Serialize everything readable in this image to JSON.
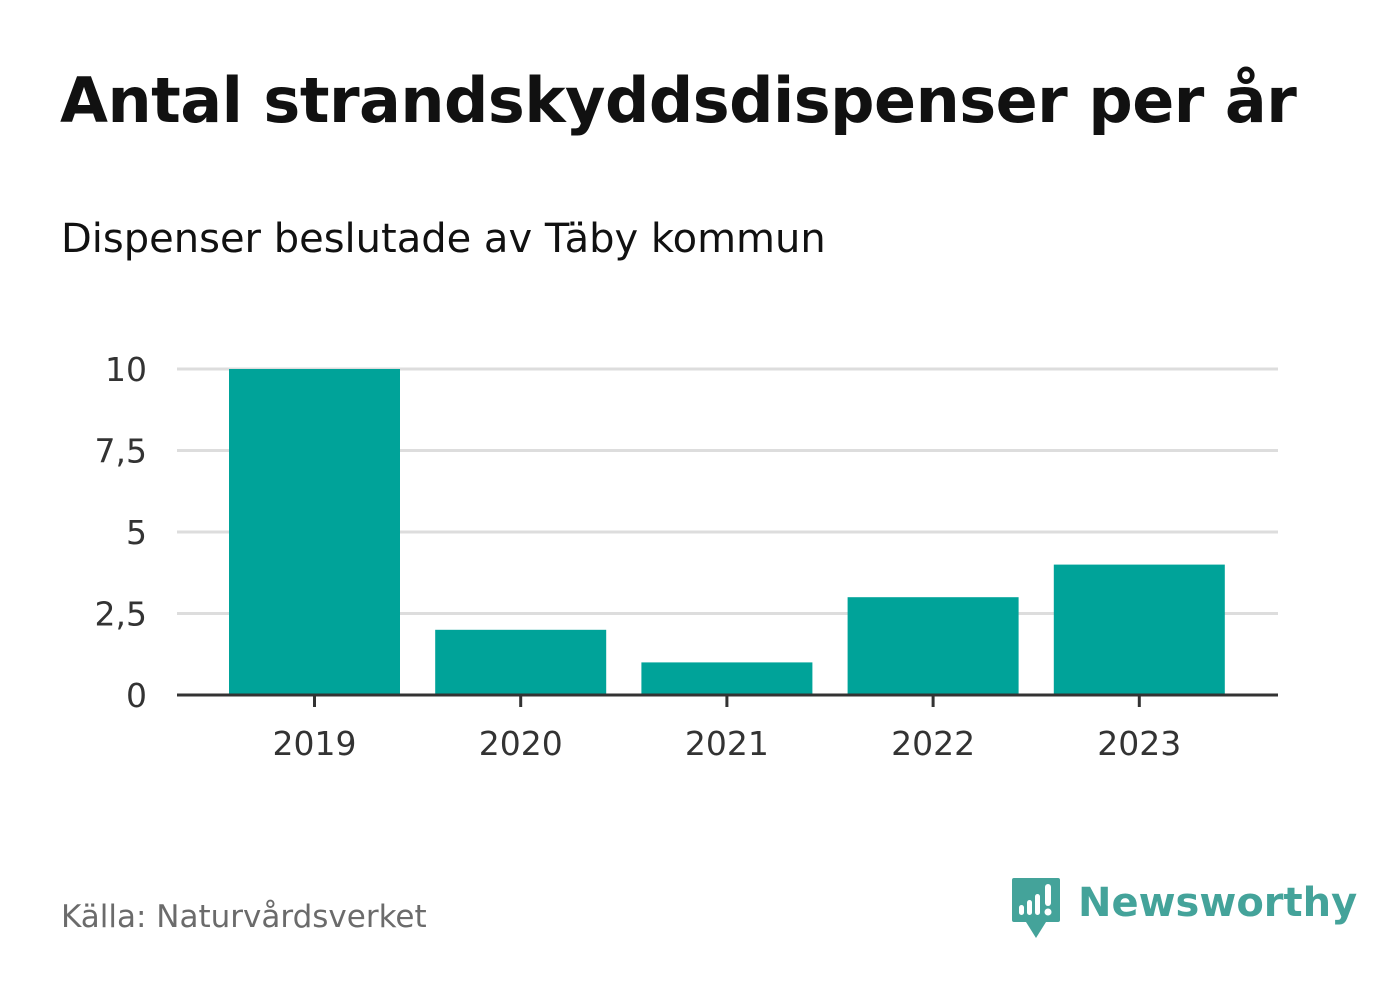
{
  "chart_data": {
    "type": "bar",
    "title": "Antal strandskyddsdispenser per år",
    "subtitle": "Dispenser beslutade av Täby kommun",
    "categories": [
      "2019",
      "2020",
      "2021",
      "2022",
      "2023"
    ],
    "values": [
      10,
      2,
      1,
      3,
      4
    ],
    "yticks": [
      0,
      2.5,
      5,
      7.5,
      10
    ],
    "ytick_labels": [
      "0",
      "2,5",
      "5",
      "7,5",
      "10"
    ],
    "ylim": [
      0,
      10
    ],
    "xlabel": "",
    "ylabel": "",
    "grid": true,
    "bar_color": "#00a399",
    "grid_color": "#dddddd",
    "axis_color": "#333333"
  },
  "footer": {
    "source": "Källa: Naturvårdsverket",
    "brand": "Newsworthy",
    "brand_color": "#44a39a",
    "brand_icon": "newsworthy-bar-chart-logo"
  }
}
